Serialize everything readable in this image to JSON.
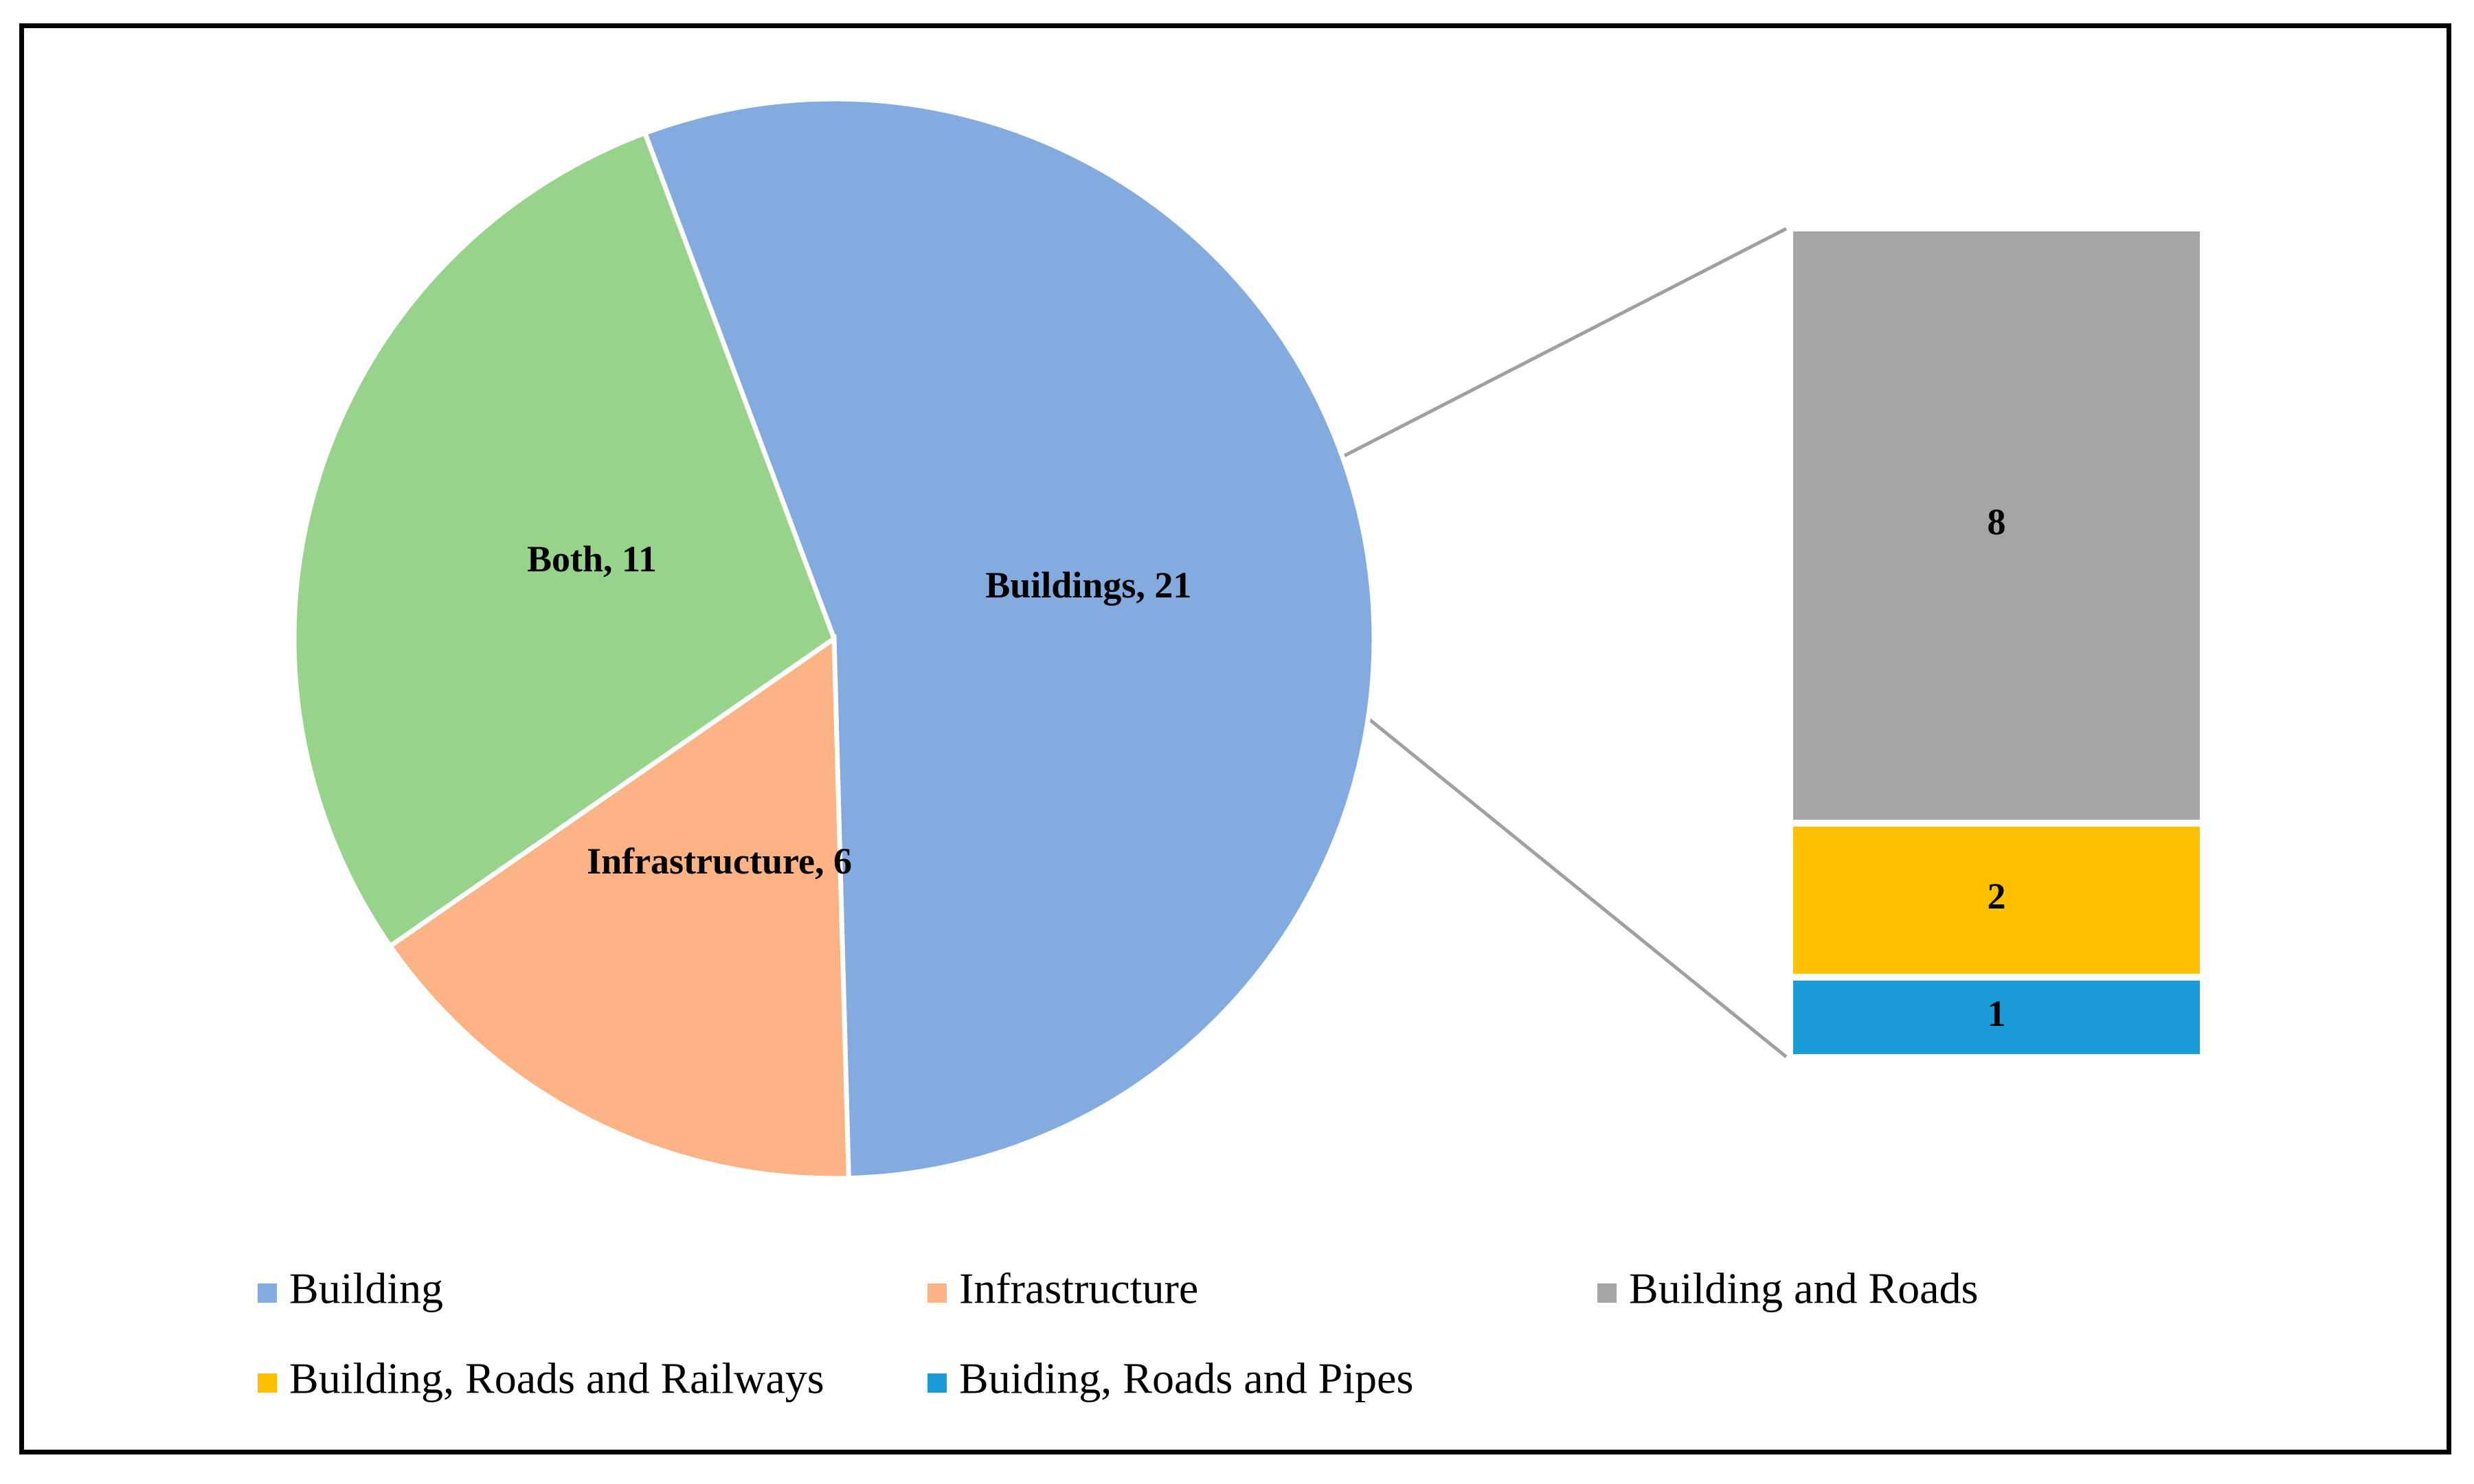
{
  "chart_data": {
    "type": "bar-of-pie",
    "pie": {
      "slices": [
        {
          "label": "Buildings",
          "value": 21,
          "data_label": "Buildings, 21",
          "color": "#84ABDF"
        },
        {
          "label": "Infrastructure",
          "value": 6,
          "data_label": "Infrastructure, 6",
          "color": "#FBB285"
        },
        {
          "label": "Both",
          "value": 11,
          "data_label": "Both, 11",
          "color": "#97D38A"
        }
      ]
    },
    "bar": {
      "segments": [
        {
          "label": "Building and Roads",
          "value": 8,
          "data_label": "8",
          "color": "#A5A5A5"
        },
        {
          "label": "Building, Roads and Railways",
          "value": 2,
          "data_label": "2",
          "color": "#FFC000"
        },
        {
          "label": "Buiding, Roads and Pipes",
          "value": 1,
          "data_label": "1",
          "color": "#1A9BD7"
        }
      ]
    },
    "legend": {
      "placement": "bottom",
      "entries": [
        {
          "label": "Building",
          "color": "#84ABDF"
        },
        {
          "label": "Infrastructure",
          "color": "#FBB285"
        },
        {
          "label": "Building and Roads",
          "color": "#A5A5A5"
        },
        {
          "label": "Building, Roads and Railways",
          "color": "#FFC000"
        },
        {
          "label": "Buiding, Roads and Pipes",
          "color": "#1A9BD7"
        }
      ]
    },
    "connector_color": "#A0A0A0"
  }
}
